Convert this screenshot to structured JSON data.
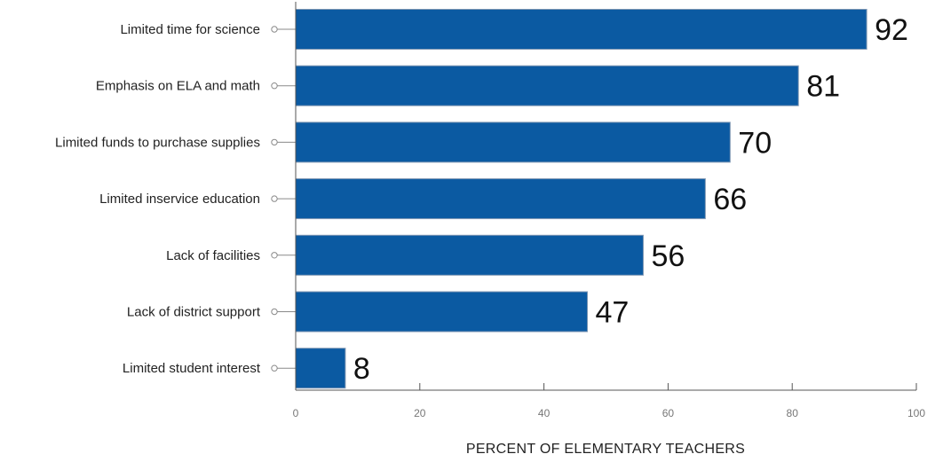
{
  "chart_data": {
    "type": "bar",
    "orientation": "horizontal",
    "categories": [
      "Limited time for science",
      "Emphasis on ELA and math",
      "Limited funds to purchase supplies",
      "Limited inservice education",
      "Lack of facilities",
      "Lack of district support",
      "Limited student interest"
    ],
    "values": [
      92,
      81,
      70,
      66,
      56,
      47,
      8
    ],
    "xlabel": "PERCENT OF ELEMENTARY TEACHERS",
    "ylabel": "",
    "xlim": [
      0,
      100
    ],
    "xticks": [
      0,
      20,
      40,
      60,
      80,
      100
    ],
    "grid": false,
    "bar_color": "#0b5aa2",
    "bar_border_color": "#7f97b3"
  }
}
